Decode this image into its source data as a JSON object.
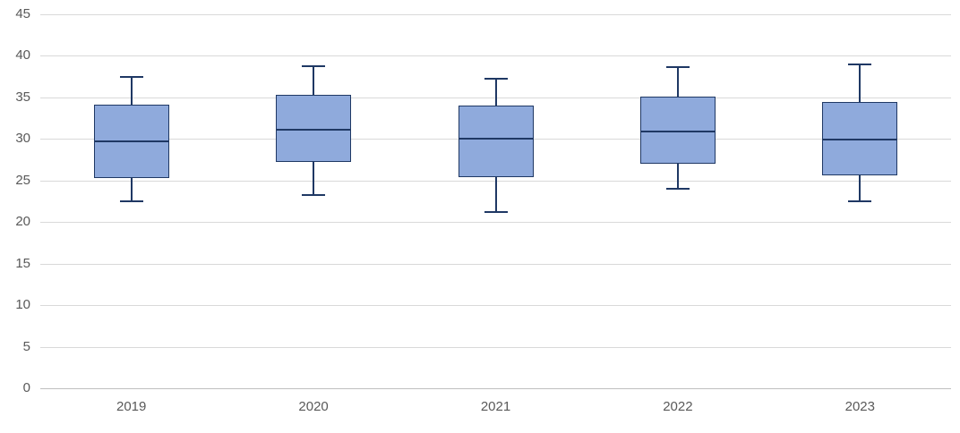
{
  "chart_data": {
    "type": "boxplot",
    "title": "",
    "xlabel": "",
    "ylabel": "",
    "categories": [
      "2019",
      "2020",
      "2021",
      "2022",
      "2023"
    ],
    "series": [
      {
        "name": "2019",
        "whisker_low": 22.5,
        "q1": 25.3,
        "median": 29.8,
        "q3": 34.1,
        "whisker_high": 37.5
      },
      {
        "name": "2020",
        "whisker_low": 23.3,
        "q1": 27.2,
        "median": 31.2,
        "q3": 35.3,
        "whisker_high": 38.8
      },
      {
        "name": "2021",
        "whisker_low": 21.2,
        "q1": 25.4,
        "median": 30.1,
        "q3": 34.0,
        "whisker_high": 37.3
      },
      {
        "name": "2022",
        "whisker_low": 24.0,
        "q1": 27.0,
        "median": 30.9,
        "q3": 35.1,
        "whisker_high": 38.6
      },
      {
        "name": "2023",
        "whisker_low": 22.5,
        "q1": 25.6,
        "median": 30.0,
        "q3": 34.4,
        "whisker_high": 39.0
      }
    ],
    "ylim": [
      0,
      45
    ],
    "yticks": [
      0,
      5,
      10,
      15,
      20,
      25,
      30,
      35,
      40,
      45
    ],
    "grid": "horizontal",
    "legend": "none",
    "colors": {
      "box_fill": "#8FAADC",
      "box_stroke": "#1F3864",
      "gridline": "#D9D9D9",
      "axis_line": "#BFBFBF",
      "tick_text": "#595959",
      "background": "#FFFFFF"
    }
  }
}
